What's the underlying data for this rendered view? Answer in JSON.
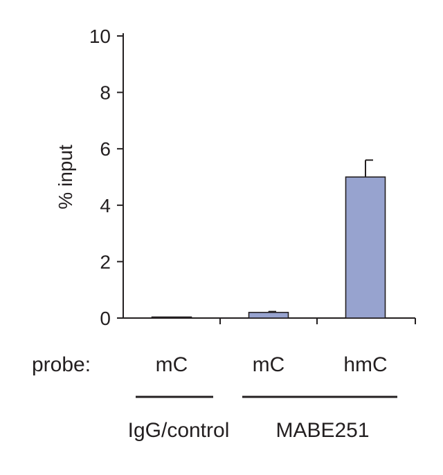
{
  "chart_data": {
    "type": "bar",
    "ylabel": "% input",
    "ylim": [
      0,
      10
    ],
    "yticks": [
      0,
      2,
      4,
      6,
      8,
      10
    ],
    "ytick_labels": [
      "0",
      "2",
      "4",
      "6",
      "8",
      "10"
    ],
    "row_label": "probe:",
    "categories": [
      "mC",
      "mC",
      "hmC"
    ],
    "values": [
      0.02,
      0.2,
      5.0
    ],
    "errors": [
      0,
      0.03,
      0.6
    ],
    "groups": [
      {
        "label": "IgG/control",
        "categories": [
          0
        ]
      },
      {
        "label": "MABE251",
        "categories": [
          1,
          2
        ]
      }
    ],
    "grid": false,
    "legend": "none"
  },
  "colors": {
    "bar_fill": "#97a3cf",
    "bar_stroke": "#231f20",
    "axis": "#231f20",
    "text": "#231f20"
  }
}
